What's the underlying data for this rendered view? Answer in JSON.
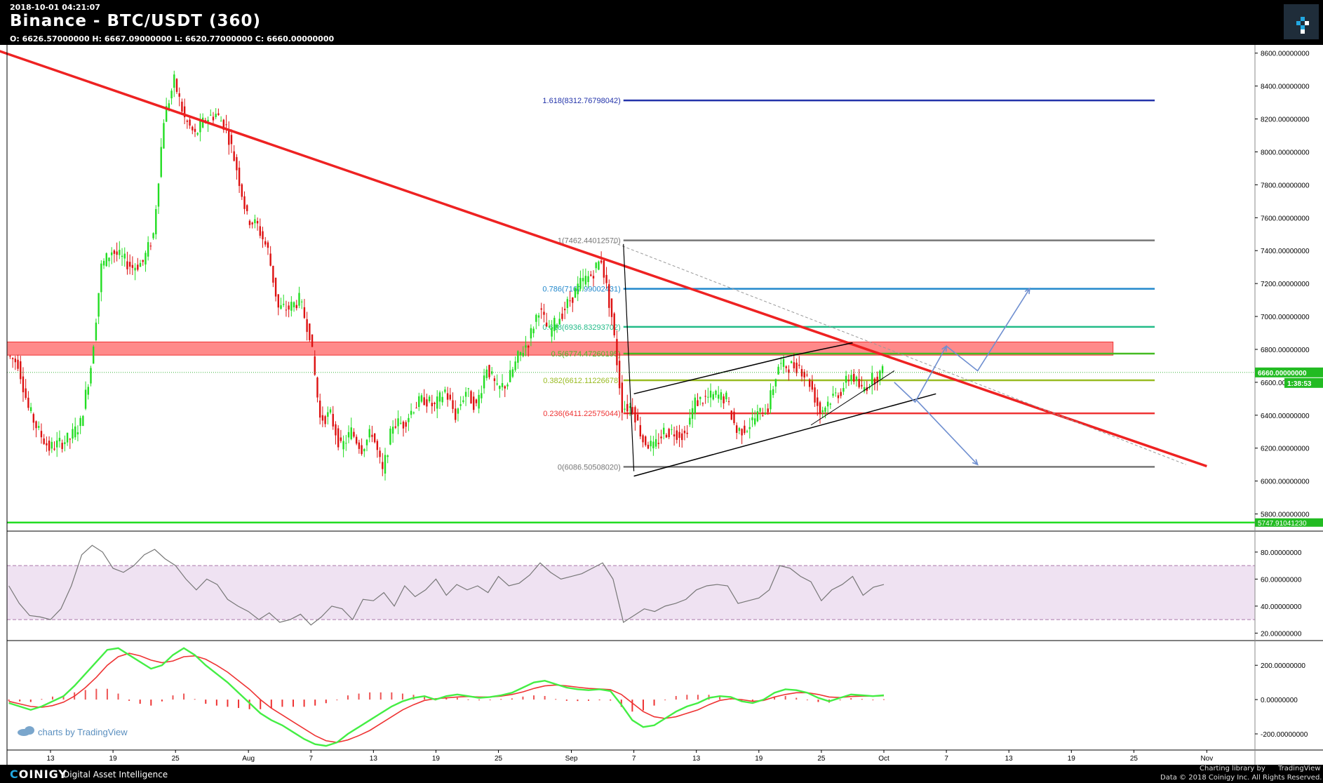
{
  "header": {
    "timestamp": "2018-10-01 04:21:07",
    "title": "Binance - BTC/USDT (360)",
    "ohlc": "O: 6626.57000000 H: 6667.09000000 L: 6620.77000000 C: 6660.00000000"
  },
  "footer": {
    "brand_prefix": "C",
    "brand_rest": "OINIGY",
    "tagline": "Digital Asset Intelligence",
    "charting_library": "Charting library by",
    "tradingview": "TradingView",
    "data_credit": "Data © 2018 Coinigy Inc. All Rights Reserved."
  },
  "watermark": "charts by TradingView",
  "colors": {
    "background": "#ffffff",
    "up_candle": "#22dd22",
    "down_candle": "#dd1111",
    "trendline": "#ee2222",
    "resistance_zone": "#ff8a8a",
    "rsi_band": "#efe2f2",
    "macd_fast": "#44ee44",
    "macd_slow": "#ee3333",
    "projection_arrows": "#6f8fd0"
  },
  "chart_data": [
    {
      "type": "candlestick",
      "pair": "BTC/USDT",
      "timeframe": "360",
      "ylim": [
        5700,
        8650
      ],
      "y_ticks": [
        "8600.00000000",
        "8400.00000000",
        "8200.00000000",
        "8000.00000000",
        "7800.00000000",
        "7600.00000000",
        "7400.00000000",
        "7200.00000000",
        "7000.00000000",
        "6800.00000000",
        "6600.00000000",
        "6400.00000000",
        "6200.00000000",
        "6000.00000000",
        "5800.00000000"
      ],
      "x_ticks": [
        "13",
        "19",
        "25",
        "Aug",
        "7",
        "13",
        "19",
        "25",
        "Sep",
        "7",
        "13",
        "19",
        "25",
        "Oct",
        "7",
        "13",
        "19",
        "25",
        "Nov"
      ],
      "price_path": [
        [
          "Jul 9",
          6760
        ],
        [
          "Jul 10",
          6720
        ],
        [
          "Jul 11",
          6440
        ],
        [
          "Jul 12",
          6300
        ],
        [
          "Jul 13",
          6200
        ],
        [
          "Jul 14",
          6230
        ],
        [
          "Jul 15",
          6260
        ],
        [
          "Jul 16",
          6350
        ],
        [
          "Jul 17",
          6700
        ],
        [
          "Jul 18",
          7300
        ],
        [
          "Jul 19",
          7400
        ],
        [
          "Jul 20",
          7350
        ],
        [
          "Jul 21",
          7300
        ],
        [
          "Jul 22",
          7330
        ],
        [
          "Jul 23",
          7500
        ],
        [
          "Jul 24",
          8200
        ],
        [
          "Jul 25",
          8430
        ],
        [
          "Jul 26",
          8200
        ],
        [
          "Jul 27",
          8100
        ],
        [
          "Jul 28",
          8200
        ],
        [
          "Jul 29",
          8230
        ],
        [
          "Jul 30",
          8150
        ],
        [
          "Jul 31",
          7900
        ],
        [
          "Aug 1",
          7600
        ],
        [
          "Aug 2",
          7550
        ],
        [
          "Aug 3",
          7400
        ],
        [
          "Aug 4",
          7050
        ],
        [
          "Aug 5",
          7050
        ],
        [
          "Aug 6",
          7100
        ],
        [
          "Aug 7",
          6900
        ],
        [
          "Aug 8",
          6380
        ],
        [
          "Aug 9",
          6400
        ],
        [
          "Aug 10",
          6200
        ],
        [
          "Aug 11",
          6300
        ],
        [
          "Aug 12",
          6200
        ],
        [
          "Aug 13",
          6300
        ],
        [
          "Aug 14",
          6050
        ],
        [
          "Aug 15",
          6350
        ],
        [
          "Aug 16",
          6350
        ],
        [
          "Aug 17",
          6450
        ],
        [
          "Aug 18",
          6500
        ],
        [
          "Aug 19",
          6450
        ],
        [
          "Aug 20",
          6550
        ],
        [
          "Aug 21",
          6400
        ],
        [
          "Aug 22",
          6550
        ],
        [
          "Aug 23",
          6450
        ],
        [
          "Aug 24",
          6700
        ],
        [
          "Aug 25",
          6550
        ],
        [
          "Aug 26",
          6600
        ],
        [
          "Aug 27",
          6750
        ],
        [
          "Aug 28",
          6850
        ],
        [
          "Aug 29",
          7050
        ],
        [
          "Aug 30",
          6900
        ],
        [
          "Aug 31",
          7000
        ],
        [
          "Sep 1",
          7100
        ],
        [
          "Sep 2",
          7200
        ],
        [
          "Sep 3",
          7250
        ],
        [
          "Sep 4",
          7350
        ],
        [
          "Sep 5",
          7000
        ],
        [
          "Sep 6",
          6450
        ],
        [
          "Sep 7",
          6450
        ],
        [
          "Sep 8",
          6250
        ],
        [
          "Sep 9",
          6200
        ],
        [
          "Sep 10",
          6300
        ],
        [
          "Sep 11",
          6300
        ],
        [
          "Sep 12",
          6280
        ],
        [
          "Sep 13",
          6480
        ],
        [
          "Sep 14",
          6500
        ],
        [
          "Sep 15",
          6520
        ],
        [
          "Sep 16",
          6500
        ],
        [
          "Sep 17",
          6300
        ],
        [
          "Sep 18",
          6330
        ],
        [
          "Sep 19",
          6400
        ],
        [
          "Sep 20",
          6450
        ],
        [
          "Sep 21",
          6700
        ],
        [
          "Sep 22",
          6700
        ],
        [
          "Sep 23",
          6700
        ],
        [
          "Sep 24",
          6600
        ],
        [
          "Sep 25",
          6420
        ],
        [
          "Sep 26",
          6500
        ],
        [
          "Sep 27",
          6550
        ],
        [
          "Sep 28",
          6650
        ],
        [
          "Sep 29",
          6550
        ],
        [
          "Sep 30",
          6620
        ],
        [
          "Oct 1",
          6660
        ]
      ],
      "last_price_label": "6660.00000000",
      "countdown_label": "1:38:53",
      "bottom_line_label": "5747.91041230",
      "fibonacci": [
        {
          "ratio": "1",
          "label": "1(7462.44012570)",
          "price": 7462.44,
          "color": "#777777"
        },
        {
          "ratio": "0.786",
          "label": "0.786(7167.99002431)",
          "price": 7167.99,
          "color": "#2288cc"
        },
        {
          "ratio": "0.618",
          "label": "0.618(6936.83293702)",
          "price": 6936.83,
          "color": "#22bb88"
        },
        {
          "ratio": "0.5",
          "label": "0.5(6774.47260195)",
          "price": 6774.47,
          "color": "#44bb22"
        },
        {
          "ratio": "0.382",
          "label": "0.382(6612.11226678)",
          "price": 6612.11,
          "color": "#99bb22"
        },
        {
          "ratio": "0.236",
          "label": "0.236(6411.22575044)",
          "price": 6411.23,
          "color": "#ee3333"
        },
        {
          "ratio": "0",
          "label": "0(6086.50508020)",
          "price": 6086.51,
          "color": "#777777"
        },
        {
          "ratio": "1.618",
          "label": "1.618(8312.76798042)",
          "price": 8312.77,
          "color": "#2233aa"
        }
      ],
      "resistance_zone": [
        6765,
        6845
      ],
      "support_line": 5747.91,
      "trendline": [
        [
          "Jul 5",
          8680
        ],
        [
          "Nov 1",
          6090
        ]
      ],
      "grid": false
    },
    {
      "type": "line",
      "indicator": "RSI",
      "ylim": [
        15,
        95
      ],
      "y_ticks": [
        "80.00000000",
        "60.00000000",
        "40.00000000",
        "20.00000000"
      ],
      "band": [
        30,
        70
      ],
      "values": [
        55,
        42,
        33,
        32,
        30,
        38,
        55,
        78,
        85,
        80,
        68,
        65,
        70,
        78,
        82,
        75,
        70,
        60,
        52,
        60,
        56,
        45,
        40,
        36,
        30,
        35,
        28,
        30,
        34,
        26,
        32,
        40,
        38,
        30,
        45,
        44,
        50,
        40,
        55,
        47,
        52,
        60,
        48,
        56,
        52,
        55,
        50,
        62,
        55,
        57,
        63,
        72,
        65,
        60,
        62,
        64,
        68,
        72,
        60,
        28,
        33,
        38,
        36,
        40,
        42,
        45,
        52,
        55,
        56,
        55,
        42,
        44,
        46,
        52,
        70,
        68,
        62,
        58,
        44,
        52,
        56,
        62,
        48,
        54,
        56
      ]
    },
    {
      "type": "line",
      "indicator": "MACD",
      "ylim": [
        -290,
        340
      ],
      "y_ticks": [
        "200.00000000",
        "0.00000000",
        "-200.00000000"
      ],
      "macd": [
        -20,
        -40,
        -60,
        -40,
        -10,
        20,
        80,
        150,
        220,
        290,
        300,
        260,
        220,
        180,
        200,
        260,
        300,
        260,
        200,
        150,
        100,
        40,
        -20,
        -80,
        -120,
        -150,
        -190,
        -230,
        -260,
        -270,
        -250,
        -200,
        -160,
        -120,
        -80,
        -40,
        -10,
        10,
        20,
        0,
        20,
        30,
        20,
        10,
        15,
        25,
        40,
        70,
        100,
        110,
        90,
        70,
        60,
        55,
        60,
        50,
        -30,
        -120,
        -160,
        -150,
        -110,
        -70,
        -40,
        -20,
        10,
        20,
        15,
        -10,
        -20,
        0,
        40,
        60,
        55,
        40,
        10,
        -10,
        10,
        30,
        25,
        20,
        25
      ],
      "signal": [
        -10,
        -25,
        -40,
        -45,
        -35,
        -15,
        20,
        70,
        130,
        200,
        250,
        270,
        255,
        230,
        215,
        225,
        250,
        255,
        235,
        200,
        160,
        110,
        60,
        0,
        -50,
        -90,
        -130,
        -170,
        -210,
        -240,
        -250,
        -235,
        -210,
        -180,
        -140,
        -100,
        -60,
        -30,
        -5,
        5,
        10,
        15,
        18,
        15,
        15,
        20,
        30,
        45,
        65,
        80,
        85,
        80,
        72,
        65,
        62,
        58,
        30,
        -20,
        -70,
        -100,
        -110,
        -100,
        -80,
        -60,
        -30,
        -5,
        5,
        0,
        -10,
        -5,
        15,
        30,
        40,
        40,
        30,
        15,
        12,
        18,
        20,
        20,
        22
      ],
      "histogram_note": "macd minus signal"
    }
  ]
}
